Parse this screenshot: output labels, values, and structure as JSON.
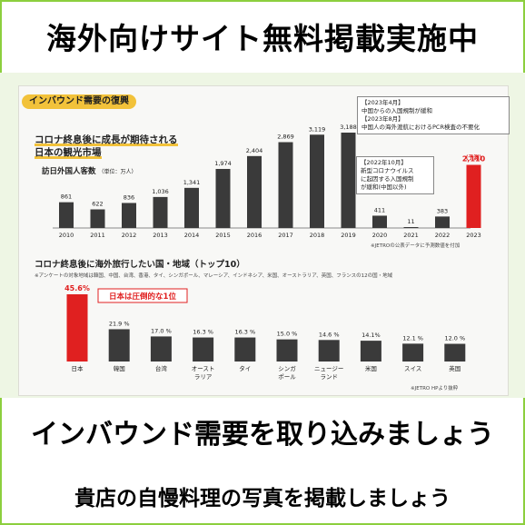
{
  "banner_top": "海外向けサイト無料掲載実施中",
  "section_pill": "インバウンド需要の復興",
  "chart1": {
    "subtitle_line1": "コロナ終息後に成長が期待される",
    "subtitle_line2": "日本の観光市場",
    "unit_label": "訪日外国人客数",
    "unit_note": "（単位：万人）",
    "forecast_tag": "(予測)",
    "note_2023": [
      "【2023年4月】",
      "中国からの入国規制が緩和",
      "【2023年8月】",
      "中国人の海外渡航におけるPCR検査の不要化"
    ],
    "note_2022": [
      "【2022年10月】",
      "新型コロナウイルス",
      "に起因する入国規制",
      "が緩和(中国以外)"
    ],
    "source": "※JETROの公表データに予測数値を付加"
  },
  "chart2": {
    "title": "コロナ終息後に海外旅行したい国・地域（トップ10）",
    "footnote": "※アンケートの対象地域は韓国、中国、台湾、香港、タイ、シンガポール、マレーシア、インドネシア、米国、オーストラリア、英国、フランスの12の国・地域",
    "callout": "日本は圧倒的な1位",
    "source": "※JETRO HPより抜粋"
  },
  "chart_data": [
    {
      "type": "bar",
      "categories": [
        "2010",
        "2011",
        "2012",
        "2013",
        "2014",
        "2015",
        "2016",
        "2017",
        "2018",
        "2019",
        "2020",
        "2021",
        "2022",
        "2023"
      ],
      "values": [
        861,
        622,
        836,
        1036,
        1341,
        1974,
        2404,
        2869,
        3119,
        3188,
        411,
        11,
        383,
        2110
      ],
      "value_labels": [
        "861",
        "622",
        "836",
        "1,036",
        "1,341",
        "1,974",
        "2,404",
        "2,869",
        "3,119",
        "3,188",
        "411",
        "11",
        "383",
        "2,110"
      ],
      "highlight_index": 13,
      "colors": {
        "bar": "#3a3a3a",
        "highlight": "#e02020"
      },
      "title": "",
      "ylabel": "訪日外国人客数（単位：万人）",
      "grid": false
    },
    {
      "type": "bar",
      "categories": [
        "日本",
        "韓国",
        "台湾",
        "オースト\nラリア",
        "タイ",
        "シンガ\nポール",
        "ニュージー\nランド",
        "米国",
        "スイス",
        "英国"
      ],
      "values": [
        45.6,
        21.9,
        17.0,
        16.3,
        16.3,
        15.0,
        14.6,
        14.1,
        12.1,
        12.0
      ],
      "value_labels": [
        "45.6%",
        "21.9 %",
        "17.0 %",
        "16.3 %",
        "16.3 %",
        "15.0 %",
        "14.6 %",
        "14.1%",
        "12.1 %",
        "12.0 %"
      ],
      "highlight_index": 0,
      "colors": {
        "bar": "#3a3a3a",
        "highlight": "#e02020"
      },
      "title": "コロナ終息後に海外旅行したい国・地域（トップ10）",
      "grid": false
    }
  ],
  "bottom_line1": "インバウンド需要を取り込みましょう",
  "bottom_line2": "貴店の自慢料理の写真を掲載しましょう"
}
